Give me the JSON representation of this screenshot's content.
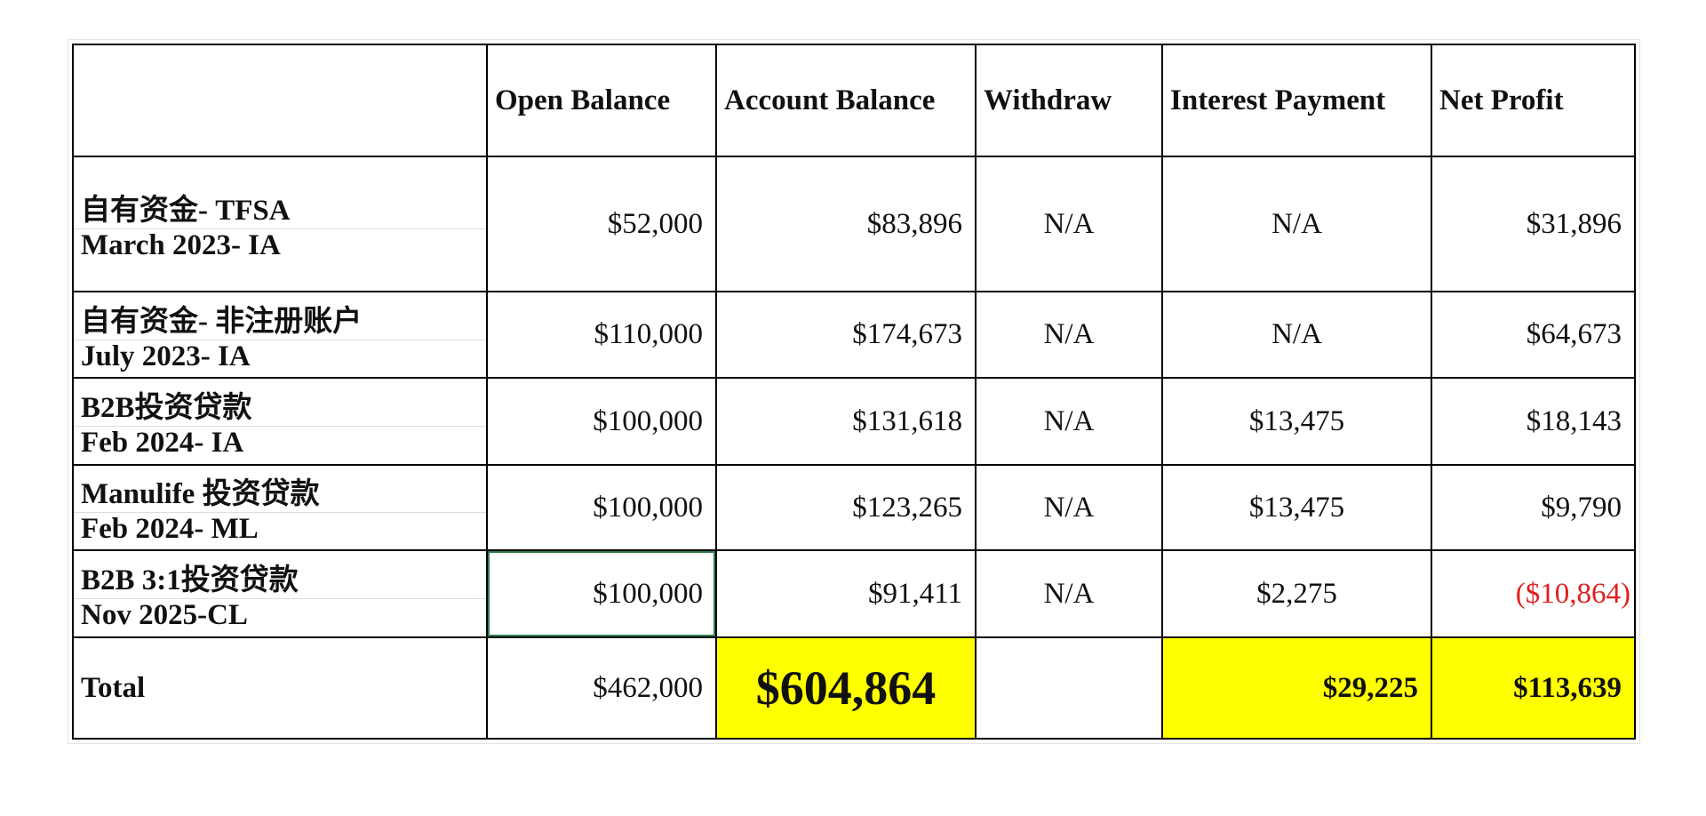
{
  "table": {
    "columns": [
      "Open Balance",
      "Account Balance",
      "Withdraw",
      "Interest Payment",
      "Net Profit"
    ],
    "rows": [
      {
        "label": [
          "自有资金- TFSA",
          "March 2023- IA"
        ],
        "cells": [
          "$52,000",
          "$83,896",
          "N/A",
          "N/A",
          "$31,896"
        ]
      },
      {
        "label": [
          "自有资金- 非注册账户",
          "July 2023- IA"
        ],
        "cells": [
          "$110,000",
          "$174,673",
          "N/A",
          "N/A",
          "$64,673"
        ]
      },
      {
        "label": [
          "B2B投资贷款",
          "Feb 2024- IA"
        ],
        "cells": [
          "$100,000",
          "$131,618",
          "N/A",
          "$13,475",
          "$18,143"
        ]
      },
      {
        "label": [
          "Manulife 投资贷款",
          "Feb 2024- ML"
        ],
        "cells": [
          "$100,000",
          "$123,265",
          "N/A",
          "$13,475",
          "$9,790"
        ]
      },
      {
        "label": [
          "B2B 3:1投资贷款",
          "Nov 2025-CL"
        ],
        "cells": [
          "$100,000",
          "$91,411",
          "N/A",
          "$2,275",
          "($10,864)"
        ]
      }
    ],
    "total": {
      "label": "Total",
      "open_balance": "$462,000",
      "account_balance": "$604,864",
      "interest_payment": "$29,225",
      "net_profit": "$113,639"
    }
  }
}
